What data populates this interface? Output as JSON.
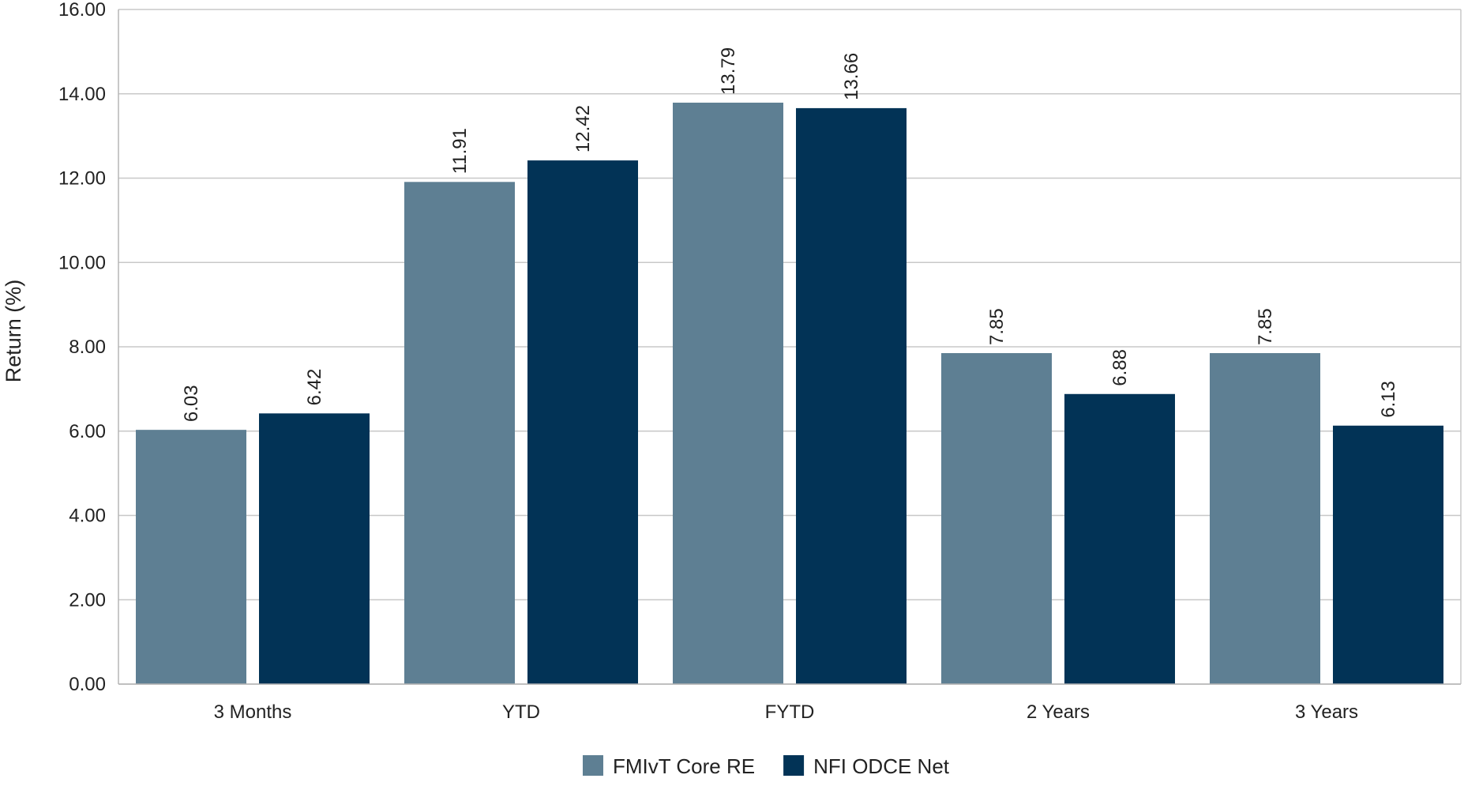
{
  "chart_data": {
    "type": "bar",
    "title": "",
    "xlabel": "",
    "ylabel": "Return (%)",
    "ylim": [
      0,
      16
    ],
    "ytick_step": 2,
    "ytick_decimals": 2,
    "grid": true,
    "legend_position": "bottom-center",
    "categories": [
      "3 Months",
      "YTD",
      "FYTD",
      "2 Years",
      "3 Years"
    ],
    "series": [
      {
        "name": "FMIvT Core RE",
        "color": "#5e7f93",
        "values": [
          6.03,
          11.91,
          13.79,
          7.85,
          7.85
        ],
        "labels": [
          "6.03",
          "11.91",
          "13.79",
          "7.85",
          "7.85"
        ]
      },
      {
        "name": "NFI ODCE Net",
        "color": "#023356",
        "values": [
          6.42,
          12.42,
          13.66,
          6.88,
          6.13
        ],
        "labels": [
          "6.42",
          "12.42",
          "13.66",
          "6.88",
          "6.13"
        ]
      }
    ]
  }
}
